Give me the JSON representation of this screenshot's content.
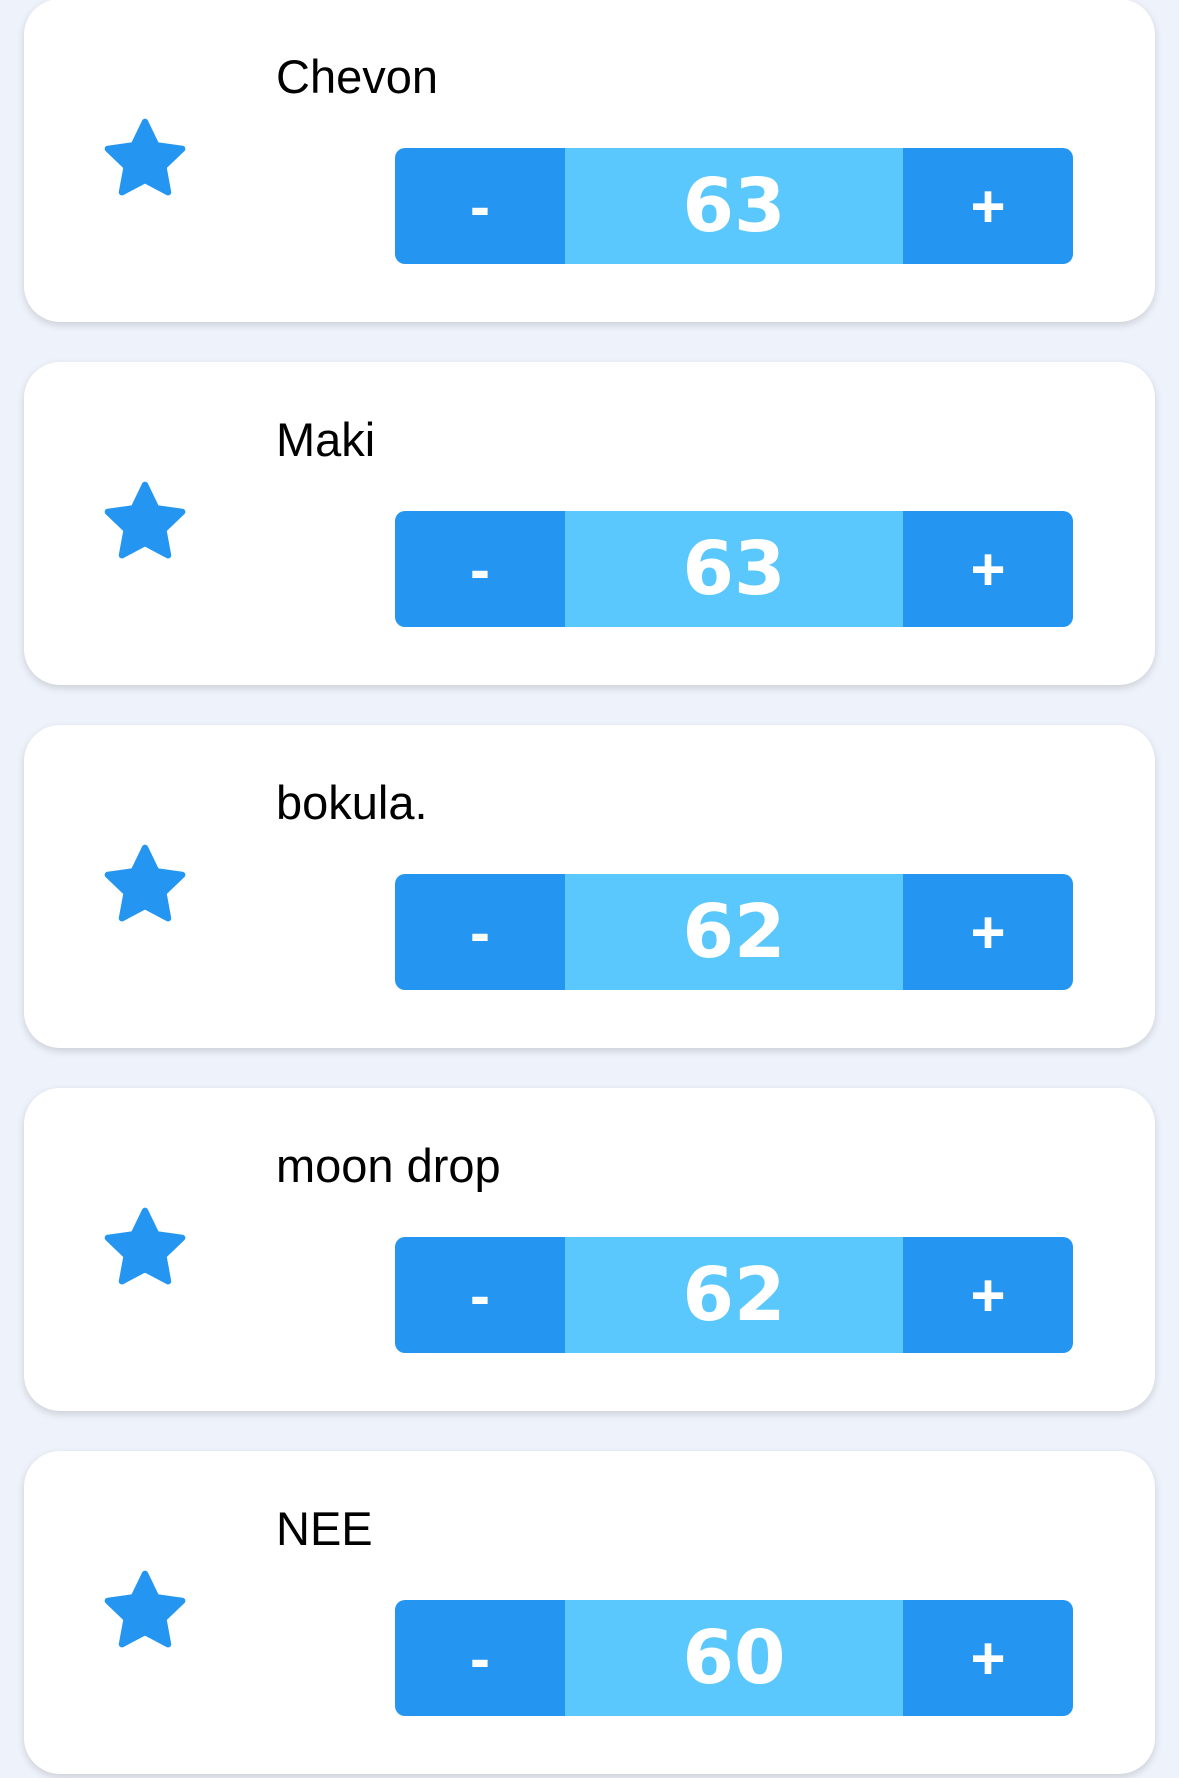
{
  "colors": {
    "accent": "#2496f2",
    "value_bg": "#5ac8fd",
    "background": "#eef2fa"
  },
  "icons": {
    "favorite": "star-icon"
  },
  "stepper": {
    "minus_label": "-",
    "plus_label": "+"
  },
  "items": [
    {
      "name": "Chevon",
      "value": "63"
    },
    {
      "name": "Maki",
      "value": "63"
    },
    {
      "name": "bokula.",
      "value": "62"
    },
    {
      "name": "moon drop",
      "value": "62"
    },
    {
      "name": "NEE",
      "value": "60"
    }
  ]
}
